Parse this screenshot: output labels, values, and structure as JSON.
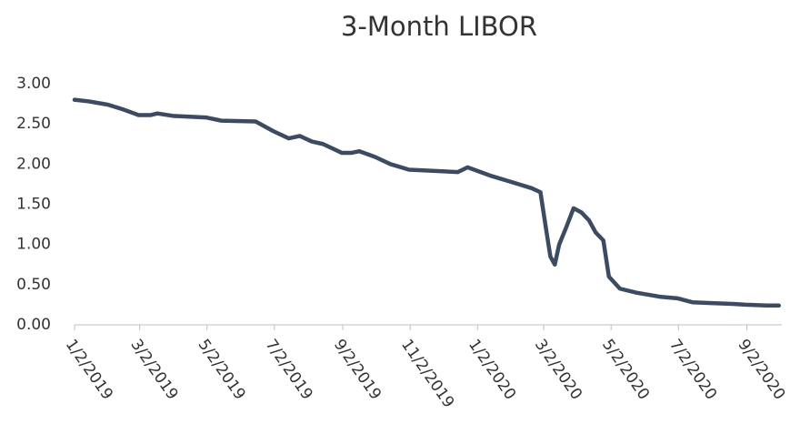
{
  "chart_data": {
    "type": "line",
    "title": "3-Month LIBOR",
    "x": [
      "1/2/2019",
      "1/15/2019",
      "2/1/2019",
      "2/15/2019",
      "3/1/2019",
      "3/12/2019",
      "3/18/2019",
      "4/1/2019",
      "5/1/2019",
      "5/15/2019",
      "6/15/2019",
      "7/1/2019",
      "7/15/2019",
      "7/25/2019",
      "8/5/2019",
      "8/15/2019",
      "9/1/2019",
      "9/10/2019",
      "9/17/2019",
      "10/1/2019",
      "10/15/2019",
      "11/1/2019",
      "12/1/2019",
      "12/15/2019",
      "12/24/2019",
      "1/15/2020",
      "2/1/2020",
      "2/20/2020",
      "2/28/2020",
      "3/4/2020",
      "3/8/2020",
      "3/12/2020",
      "3/16/2020",
      "3/22/2020",
      "3/29/2020",
      "4/5/2020",
      "4/12/2020",
      "4/18/2020",
      "4/25/2020",
      "4/30/2020",
      "5/10/2020",
      "5/25/2020",
      "6/15/2020",
      "7/1/2020",
      "7/15/2020",
      "8/1/2020",
      "8/20/2020",
      "9/1/2020",
      "9/20/2020",
      "10/1/2020"
    ],
    "series": [
      {
        "name": "3-Month LIBOR",
        "color": "#3d4b62",
        "values": [
          2.8,
          2.78,
          2.74,
          2.68,
          2.61,
          2.61,
          2.63,
          2.6,
          2.58,
          2.54,
          2.53,
          2.41,
          2.32,
          2.35,
          2.28,
          2.25,
          2.14,
          2.14,
          2.16,
          2.09,
          2.0,
          1.93,
          1.91,
          1.9,
          1.96,
          1.85,
          1.78,
          1.7,
          1.65,
          1.2,
          0.85,
          0.75,
          1.0,
          1.2,
          1.45,
          1.4,
          1.3,
          1.15,
          1.05,
          0.6,
          0.45,
          0.4,
          0.35,
          0.33,
          0.28,
          0.27,
          0.26,
          0.25,
          0.24,
          0.24
        ]
      }
    ],
    "xlim": [
      "1/2/2019",
      "10/2/2020"
    ],
    "xticks": [
      "1/2/2019",
      "3/2/2019",
      "5/2/2019",
      "7/2/2019",
      "9/2/2019",
      "11/2/2019",
      "1/2/2020",
      "3/2/2020",
      "5/2/2020",
      "7/2/2020",
      "9/2/2020"
    ],
    "ylim": [
      0,
      3
    ],
    "yticks": [
      {
        "value": 0,
        "label": "0.00"
      },
      {
        "value": 0.5,
        "label": "0.50"
      },
      {
        "value": 1,
        "label": "1.00"
      },
      {
        "value": 1.5,
        "label": "1.50"
      },
      {
        "value": 2,
        "label": "2.00"
      },
      {
        "value": 2.5,
        "label": "2.50"
      },
      {
        "value": 3,
        "label": "3.00"
      }
    ],
    "grid": false
  }
}
